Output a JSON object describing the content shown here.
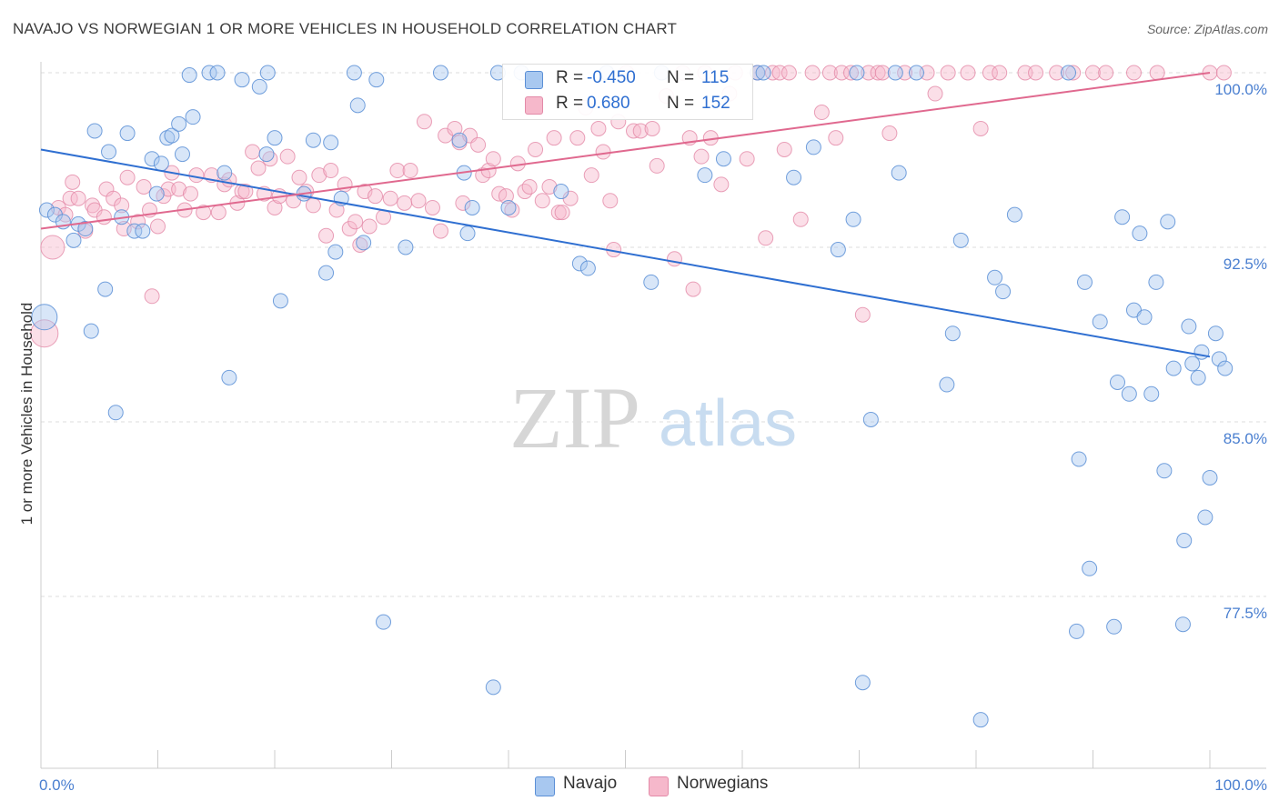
{
  "header": {
    "title": "NAVAJO VS NORWEGIAN 1 OR MORE VEHICLES IN HOUSEHOLD CORRELATION CHART",
    "source": "Source: ZipAtlas.com"
  },
  "watermark": {
    "zip": "ZIP",
    "atlas": "atlas"
  },
  "legend_top": {
    "navajo": {
      "r_label": "R =",
      "r_value": "-0.450",
      "n_label": "N =",
      "n_value": "115"
    },
    "norwegians": {
      "r_label": "R =",
      "r_value": "0.680",
      "n_label": "N =",
      "n_value": "152"
    }
  },
  "legend_bottom": {
    "navajo": "Navajo",
    "norwegians": "Norwegians"
  },
  "colors": {
    "navajo_fill": "#a8c8f0",
    "navajo_stroke": "#5b8fd6",
    "navajo_line": "#2f6fd1",
    "norwegian_fill": "#f6b8cb",
    "norwegian_stroke": "#e38aa8",
    "norwegian_line": "#e0698f",
    "tick_label": "#4a7fd0",
    "grid": "#dddddd"
  },
  "chart_data": {
    "type": "scatter",
    "title": "NAVAJO VS NORWEGIAN 1 OR MORE VEHICLES IN HOUSEHOLD CORRELATION CHART",
    "xlabel": "",
    "ylabel": "1 or more Vehicles in Household",
    "xlim": [
      0,
      100
    ],
    "ylim": [
      70.5,
      101.5
    ],
    "x_tick_labels": [
      "0.0%",
      "100.0%"
    ],
    "y_ticks": [
      77.5,
      85.0,
      92.5,
      100.0
    ],
    "y_tick_labels": [
      "77.5%",
      "85.0%",
      "92.5%",
      "100.0%"
    ],
    "grid": true,
    "legend_position": "top-center",
    "series": [
      {
        "name": "Navajo",
        "r": -0.45,
        "n": 115,
        "trend": {
          "x": [
            0,
            100
          ],
          "y": [
            96.7,
            87.8
          ]
        },
        "points": [
          [
            0.3,
            89.5
          ],
          [
            0.5,
            94.1
          ],
          [
            1.2,
            93.9
          ],
          [
            1.9,
            93.6
          ],
          [
            2.8,
            92.8
          ],
          [
            3.2,
            93.5
          ],
          [
            3.8,
            93.3
          ],
          [
            4.3,
            88.9
          ],
          [
            4.6,
            97.5
          ],
          [
            5.5,
            90.7
          ],
          [
            5.8,
            96.6
          ],
          [
            6.4,
            85.4
          ],
          [
            6.9,
            93.8
          ],
          [
            7.4,
            97.4
          ],
          [
            8.0,
            93.2
          ],
          [
            8.7,
            93.2
          ],
          [
            9.5,
            96.3
          ],
          [
            9.9,
            94.8
          ],
          [
            10.3,
            96.1
          ],
          [
            10.8,
            97.2
          ],
          [
            11.2,
            97.3
          ],
          [
            11.8,
            97.8
          ],
          [
            12.1,
            96.5
          ],
          [
            12.7,
            99.9
          ],
          [
            13.0,
            98.1
          ],
          [
            14.4,
            100.0
          ],
          [
            15.1,
            100.0
          ],
          [
            15.7,
            95.7
          ],
          [
            16.1,
            86.9
          ],
          [
            17.2,
            99.7
          ],
          [
            18.7,
            99.4
          ],
          [
            19.3,
            96.5
          ],
          [
            19.4,
            100.0
          ],
          [
            20.0,
            97.2
          ],
          [
            20.5,
            90.2
          ],
          [
            22.5,
            94.8
          ],
          [
            23.3,
            97.1
          ],
          [
            24.4,
            91.4
          ],
          [
            24.8,
            97.0
          ],
          [
            25.2,
            92.3
          ],
          [
            25.7,
            94.6
          ],
          [
            26.8,
            100.0
          ],
          [
            27.1,
            98.6
          ],
          [
            27.6,
            92.7
          ],
          [
            28.7,
            99.7
          ],
          [
            29.3,
            76.4
          ],
          [
            31.2,
            92.5
          ],
          [
            34.2,
            100.0
          ],
          [
            35.8,
            97.1
          ],
          [
            36.2,
            95.7
          ],
          [
            36.5,
            93.1
          ],
          [
            36.9,
            94.2
          ],
          [
            38.7,
            73.6
          ],
          [
            39.1,
            100.0
          ],
          [
            40.0,
            94.2
          ],
          [
            41.1,
            100.0
          ],
          [
            44.5,
            94.9
          ],
          [
            46.1,
            91.8
          ],
          [
            46.8,
            91.6
          ],
          [
            48.4,
            100.0
          ],
          [
            52.2,
            91.0
          ],
          [
            53.1,
            100.0
          ],
          [
            56.8,
            95.6
          ],
          [
            58.4,
            96.3
          ],
          [
            61.3,
            100.0
          ],
          [
            61.8,
            100.0
          ],
          [
            64.4,
            95.5
          ],
          [
            66.1,
            96.8
          ],
          [
            68.2,
            92.4
          ],
          [
            69.5,
            93.7
          ],
          [
            69.8,
            100.0
          ],
          [
            70.3,
            73.8
          ],
          [
            71.0,
            85.1
          ],
          [
            73.1,
            100.0
          ],
          [
            73.4,
            95.7
          ],
          [
            74.9,
            100.0
          ],
          [
            77.5,
            86.6
          ],
          [
            78.0,
            88.8
          ],
          [
            78.7,
            92.8
          ],
          [
            80.4,
            72.2
          ],
          [
            81.6,
            91.2
          ],
          [
            82.3,
            90.6
          ],
          [
            83.3,
            93.9
          ],
          [
            87.9,
            100.0
          ],
          [
            88.6,
            76.0
          ],
          [
            88.8,
            83.4
          ],
          [
            89.3,
            91.0
          ],
          [
            89.7,
            78.7
          ],
          [
            90.6,
            89.3
          ],
          [
            91.8,
            76.2
          ],
          [
            92.1,
            86.7
          ],
          [
            92.5,
            93.8
          ],
          [
            93.1,
            86.2
          ],
          [
            93.5,
            89.8
          ],
          [
            94.0,
            93.1
          ],
          [
            94.4,
            89.5
          ],
          [
            95.0,
            86.2
          ],
          [
            95.4,
            91.0
          ],
          [
            96.1,
            82.9
          ],
          [
            96.4,
            93.6
          ],
          [
            96.9,
            87.3
          ],
          [
            97.7,
            76.3
          ],
          [
            97.8,
            79.9
          ],
          [
            98.2,
            89.1
          ],
          [
            98.5,
            87.5
          ],
          [
            99.0,
            86.9
          ],
          [
            99.3,
            88.0
          ],
          [
            99.6,
            80.9
          ],
          [
            100.0,
            82.6
          ],
          [
            100.5,
            88.8
          ],
          [
            100.8,
            87.7
          ],
          [
            101.3,
            87.3
          ]
        ]
      },
      {
        "name": "Norwegians",
        "r": 0.68,
        "n": 152,
        "trend": {
          "x": [
            0,
            100
          ],
          "y": [
            93.3,
            100.0
          ]
        },
        "points": [
          [
            0.3,
            88.8
          ],
          [
            1.0,
            92.5
          ],
          [
            1.5,
            94.2
          ],
          [
            2.1,
            93.9
          ],
          [
            2.5,
            94.6
          ],
          [
            2.7,
            95.3
          ],
          [
            3.2,
            94.6
          ],
          [
            3.8,
            93.2
          ],
          [
            4.4,
            94.3
          ],
          [
            4.6,
            94.1
          ],
          [
            5.4,
            93.8
          ],
          [
            5.6,
            95.0
          ],
          [
            6.2,
            94.6
          ],
          [
            6.9,
            94.3
          ],
          [
            7.1,
            93.3
          ],
          [
            7.4,
            95.5
          ],
          [
            8.3,
            93.6
          ],
          [
            8.8,
            95.1
          ],
          [
            9.3,
            94.1
          ],
          [
            9.5,
            90.4
          ],
          [
            10.0,
            93.4
          ],
          [
            10.5,
            94.7
          ],
          [
            10.9,
            95.0
          ],
          [
            11.2,
            95.7
          ],
          [
            11.8,
            95.0
          ],
          [
            12.3,
            94.1
          ],
          [
            12.8,
            94.8
          ],
          [
            13.3,
            95.6
          ],
          [
            13.9,
            94.0
          ],
          [
            14.6,
            95.6
          ],
          [
            15.2,
            94.0
          ],
          [
            15.7,
            95.2
          ],
          [
            16.1,
            95.4
          ],
          [
            16.8,
            94.4
          ],
          [
            17.2,
            94.9
          ],
          [
            17.5,
            94.9
          ],
          [
            18.1,
            96.6
          ],
          [
            18.6,
            95.9
          ],
          [
            19.1,
            94.8
          ],
          [
            19.6,
            96.3
          ],
          [
            20.0,
            94.2
          ],
          [
            20.4,
            94.7
          ],
          [
            21.1,
            96.4
          ],
          [
            21.6,
            94.5
          ],
          [
            22.1,
            95.5
          ],
          [
            22.7,
            94.9
          ],
          [
            23.3,
            94.3
          ],
          [
            23.8,
            95.6
          ],
          [
            24.4,
            93.0
          ],
          [
            24.8,
            95.8
          ],
          [
            25.3,
            94.1
          ],
          [
            26.0,
            95.2
          ],
          [
            26.4,
            93.3
          ],
          [
            26.9,
            93.6
          ],
          [
            27.3,
            92.6
          ],
          [
            27.7,
            94.9
          ],
          [
            28.1,
            93.4
          ],
          [
            28.6,
            94.7
          ],
          [
            29.3,
            93.8
          ],
          [
            29.9,
            94.6
          ],
          [
            30.5,
            95.8
          ],
          [
            31.1,
            94.4
          ],
          [
            31.6,
            95.8
          ],
          [
            32.3,
            94.5
          ],
          [
            32.8,
            97.9
          ],
          [
            33.5,
            94.2
          ],
          [
            34.2,
            93.2
          ],
          [
            34.6,
            97.3
          ],
          [
            35.4,
            97.6
          ],
          [
            35.8,
            97.0
          ],
          [
            36.1,
            94.4
          ],
          [
            36.7,
            97.3
          ],
          [
            37.4,
            96.9
          ],
          [
            37.8,
            95.6
          ],
          [
            38.3,
            95.8
          ],
          [
            38.7,
            96.3
          ],
          [
            39.2,
            94.8
          ],
          [
            39.8,
            94.7
          ],
          [
            40.3,
            94.1
          ],
          [
            40.8,
            96.1
          ],
          [
            41.4,
            94.9
          ],
          [
            41.8,
            95.1
          ],
          [
            42.3,
            96.7
          ],
          [
            42.9,
            94.5
          ],
          [
            43.5,
            95.1
          ],
          [
            43.9,
            97.2
          ],
          [
            44.3,
            94.0
          ],
          [
            44.6,
            94.0
          ],
          [
            45.3,
            94.6
          ],
          [
            45.9,
            97.2
          ],
          [
            46.6,
            98.5
          ],
          [
            47.1,
            95.6
          ],
          [
            47.7,
            97.6
          ],
          [
            48.1,
            96.6
          ],
          [
            48.7,
            94.5
          ],
          [
            49.0,
            92.4
          ],
          [
            49.4,
            97.9
          ],
          [
            50.1,
            100.0
          ],
          [
            50.7,
            97.5
          ],
          [
            51.3,
            97.5
          ],
          [
            52.3,
            97.6
          ],
          [
            52.7,
            96.0
          ],
          [
            53.5,
            99.0
          ],
          [
            54.2,
            92.0
          ],
          [
            54.9,
            100.0
          ],
          [
            55.5,
            97.2
          ],
          [
            55.8,
            90.7
          ],
          [
            56.5,
            96.4
          ],
          [
            56.8,
            100.0
          ],
          [
            57.3,
            97.2
          ],
          [
            58.2,
            95.2
          ],
          [
            58.9,
            99.1
          ],
          [
            59.4,
            100.0
          ],
          [
            60.4,
            96.3
          ],
          [
            61.3,
            100.0
          ],
          [
            62.0,
            92.9
          ],
          [
            62.6,
            100.0
          ],
          [
            63.2,
            100.0
          ],
          [
            63.6,
            96.7
          ],
          [
            64.0,
            100.0
          ],
          [
            65.0,
            93.7
          ],
          [
            66.0,
            100.0
          ],
          [
            66.8,
            98.3
          ],
          [
            67.5,
            100.0
          ],
          [
            68.0,
            97.2
          ],
          [
            68.5,
            100.0
          ],
          [
            69.3,
            100.0
          ],
          [
            70.3,
            89.6
          ],
          [
            70.8,
            100.0
          ],
          [
            71.6,
            100.0
          ],
          [
            72.0,
            100.0
          ],
          [
            72.6,
            97.4
          ],
          [
            73.9,
            100.0
          ],
          [
            75.8,
            100.0
          ],
          [
            76.5,
            99.1
          ],
          [
            77.6,
            100.0
          ],
          [
            79.3,
            100.0
          ],
          [
            80.4,
            97.6
          ],
          [
            81.2,
            100.0
          ],
          [
            82.0,
            100.0
          ],
          [
            84.2,
            100.0
          ],
          [
            85.1,
            100.0
          ],
          [
            86.9,
            100.0
          ],
          [
            88.3,
            100.0
          ],
          [
            90.0,
            100.0
          ],
          [
            91.1,
            100.0
          ],
          [
            93.5,
            100.0
          ],
          [
            95.5,
            100.0
          ],
          [
            100.0,
            100.0
          ],
          [
            101.2,
            100.0
          ]
        ]
      }
    ]
  }
}
